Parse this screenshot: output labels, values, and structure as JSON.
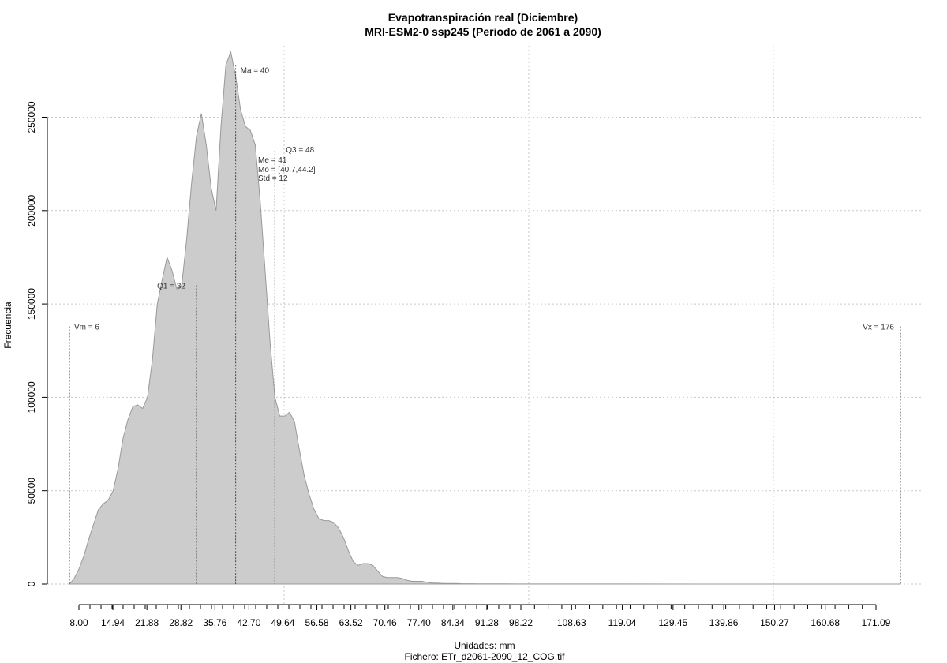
{
  "chart_data": {
    "type": "area",
    "title": "Evapotranspiración real (Diciembre)",
    "subtitle": "MRI-ESM2-0 ssp245 (Periodo de 2061 a 2090)",
    "xlabel": "Unidades: mm",
    "ylabel": "Frecuencia",
    "footer": "Fichero: ETr_d2061-2090_12_COG.tif",
    "xlim": [
      4,
      178
    ],
    "ylim": [
      0,
      285000
    ],
    "x_ticks": [
      "8.00",
      "14.94",
      "21.88",
      "28.82",
      "35.76",
      "42.70",
      "49.64",
      "56.58",
      "63.52",
      "70.46",
      "77.40",
      "84.34",
      "91.28",
      "98.22",
      "108.63",
      "119.04",
      "129.45",
      "139.86",
      "150.27",
      "160.68",
      "171.09"
    ],
    "y_ticks": [
      "0",
      "50000",
      "100000",
      "150000",
      "200000",
      "250000"
    ],
    "y_tick_values": [
      0,
      50000,
      100000,
      150000,
      200000,
      250000
    ],
    "grid": true,
    "fill_color": "#cccccc",
    "line_color": "#999999",
    "series": [
      {
        "x": [
          6,
          7,
          8,
          9,
          10,
          11,
          12,
          13,
          14,
          15,
          16,
          17,
          18,
          19,
          20,
          21,
          22,
          23,
          24,
          25,
          26,
          27,
          28,
          29,
          30,
          31,
          32,
          33,
          34,
          35,
          36,
          37,
          38,
          39,
          40,
          41,
          42,
          43,
          44,
          45,
          46,
          47,
          48,
          49,
          50,
          51,
          52,
          53,
          54,
          55,
          56,
          57,
          58,
          59,
          60,
          61,
          62,
          63,
          64,
          65,
          66,
          67,
          68,
          69,
          70,
          71,
          72,
          73,
          74,
          75,
          76,
          77,
          78,
          79,
          80,
          81,
          82,
          83,
          84,
          85,
          86,
          88,
          90,
          92,
          95,
          98,
          100,
          110,
          120,
          140,
          160,
          176
        ],
        "values": [
          0,
          3000,
          8000,
          15000,
          24000,
          32000,
          40000,
          43000,
          45000,
          50000,
          62000,
          78000,
          88000,
          95000,
          96000,
          94000,
          100000,
          120000,
          150000,
          163000,
          175000,
          168000,
          158000,
          160000,
          185000,
          215000,
          240000,
          252000,
          235000,
          212000,
          200000,
          245000,
          278000,
          285000,
          272000,
          254000,
          245000,
          243000,
          235000,
          205000,
          168000,
          130000,
          100000,
          90000,
          90000,
          92000,
          87000,
          72000,
          58000,
          48000,
          40000,
          35000,
          34000,
          34000,
          33000,
          30000,
          25000,
          18000,
          12000,
          10000,
          11000,
          11000,
          10000,
          7000,
          4000,
          3500,
          3500,
          3500,
          3000,
          2000,
          1500,
          1500,
          1500,
          1000,
          500,
          500,
          400,
          300,
          300,
          300,
          200,
          150,
          120,
          100,
          80,
          60,
          50,
          40,
          30,
          20,
          10,
          0
        ]
      }
    ],
    "reference_lines": [
      {
        "label": "Vm = 6",
        "x": 6,
        "y_top": 138000
      },
      {
        "label": "Q1 = 32",
        "x": 32,
        "y_top": 160000
      },
      {
        "label": "Ma = 40",
        "x": 40,
        "y_top": 278000
      },
      {
        "label": "Q3 = 48",
        "x": 48,
        "y_top": 232000
      },
      {
        "label": "Vx = 176",
        "x": 176,
        "y_top": 138000
      }
    ],
    "stats": [
      "Me = 41",
      "Mo = [40.7,44.2]",
      "Std = 12"
    ]
  }
}
